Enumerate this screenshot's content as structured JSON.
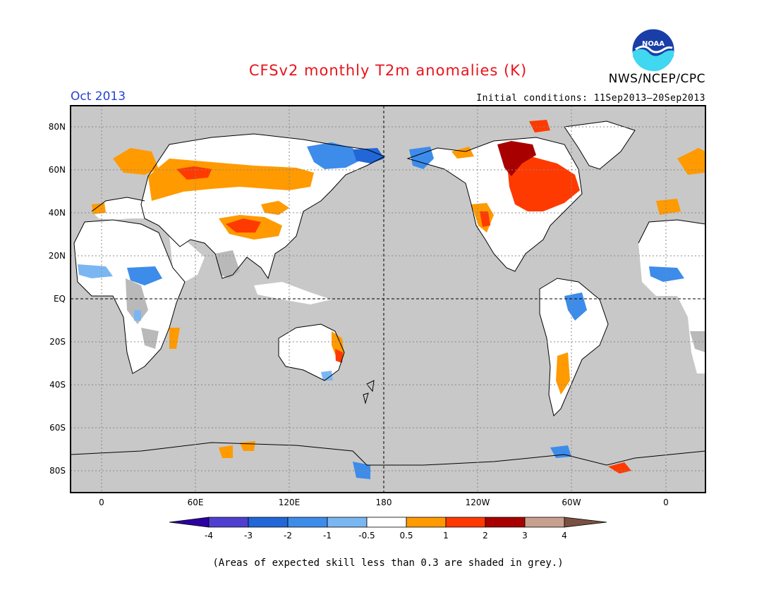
{
  "header": {
    "title": "CFSv2 monthly T2m anomalies (K)",
    "month": "Oct 2013",
    "initial_conditions": "Initial conditions: 11Sep2013–20Sep2013",
    "agency": "NWS/NCEP/CPC",
    "logo_text": "NOAA"
  },
  "map": {
    "lat_labels": [
      "80N",
      "60N",
      "40N",
      "20N",
      "EQ",
      "20S",
      "40S",
      "60S",
      "80S"
    ],
    "lon_labels": [
      "0",
      "60E",
      "120E",
      "180",
      "120W",
      "60W",
      "0"
    ],
    "background_grey": "#c8c8c8"
  },
  "legend": {
    "bins": [
      "-4",
      "-3",
      "-2",
      "-1",
      "-0.5",
      "0.5",
      "1",
      "2",
      "3",
      "4"
    ],
    "colors": [
      "#2c00a0",
      "#4f3fd1",
      "#2167d8",
      "#3d8cea",
      "#7ab7f2",
      "#ffffff",
      "#ff9a00",
      "#ff3a00",
      "#a80000",
      "#c8a090",
      "#7a5040"
    ]
  },
  "footer": {
    "note": "(Areas of expected skill less than 0.3 are shaded in grey.)"
  }
}
